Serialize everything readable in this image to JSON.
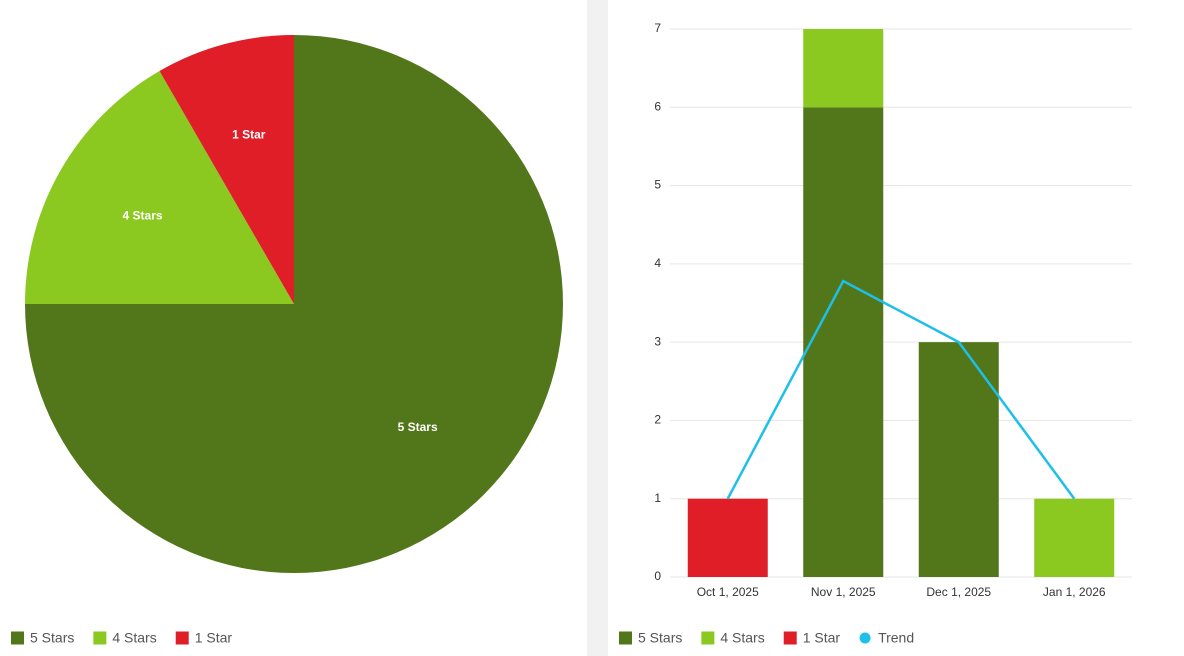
{
  "chart_data": [
    {
      "type": "pie",
      "categories": [
        "5 Stars",
        "4 Stars",
        "1 Star"
      ],
      "values": [
        9,
        2,
        1
      ],
      "colors": [
        "#52761a",
        "#8bc820",
        "#df1e28"
      ],
      "start_angle": 0
    },
    {
      "type": "bar",
      "stacked": true,
      "categories": [
        "Oct 1, 2025",
        "Nov 1, 2025",
        "Dec 1, 2025",
        "Jan 1, 2026"
      ],
      "series": [
        {
          "name": "5 Stars",
          "color": "#52761a",
          "values": [
            0,
            6,
            3,
            0
          ]
        },
        {
          "name": "4 Stars",
          "color": "#8bc820",
          "values": [
            0,
            1,
            0,
            1
          ]
        },
        {
          "name": "1 Star",
          "color": "#df1e28",
          "values": [
            1,
            0,
            0,
            0
          ]
        },
        {
          "name": "Trend",
          "color": "#1ebfe8",
          "type": "line",
          "values": [
            1,
            3.78,
            3,
            1
          ]
        }
      ],
      "ylim": [
        0,
        7
      ],
      "yticks": [
        0,
        1,
        2,
        3,
        4,
        5,
        6,
        7
      ],
      "grid": true
    }
  ]
}
